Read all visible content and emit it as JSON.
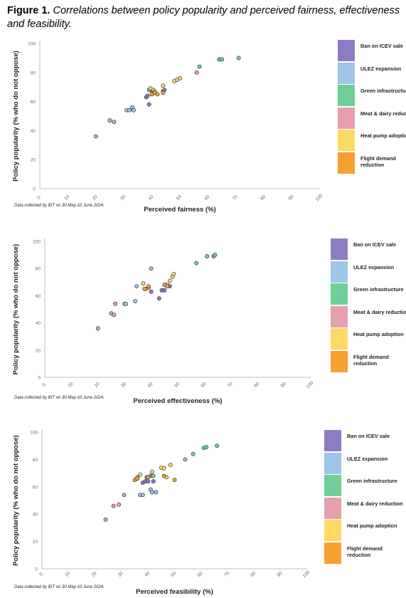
{
  "figure": {
    "label": "Figure 1.",
    "caption": "Correlations between policy popularity and perceived fairness, effectiveness and feasibility."
  },
  "legend": [
    {
      "name": "Ban on ICEV sale",
      "color": "#8e7cc3"
    },
    {
      "name": "ULEZ expansion",
      "color": "#9fc5e8"
    },
    {
      "name": "Green infrastructure",
      "color": "#6fcf97"
    },
    {
      "name": "Meat & dairy reduction",
      "color": "#e6a0ad"
    },
    {
      "name": "Heat pump adoption",
      "color": "#ffd966"
    },
    {
      "name": "Flight demand reduction",
      "color": "#f6a030"
    }
  ],
  "note": "Data collected by BIT on 30 May-10 June 2024.",
  "chart_data": [
    {
      "type": "scatter",
      "xlabel": "Perceived fairness (%)",
      "ylabel": "Policy popularity (% who do not oppose)",
      "xlim": [
        0,
        100
      ],
      "ylim": [
        0,
        100
      ],
      "xticks": [
        0,
        10,
        20,
        30,
        40,
        50,
        60,
        70,
        80,
        90,
        100
      ],
      "yticks": [
        0,
        20,
        40,
        60,
        80,
        100
      ],
      "grid": false,
      "legend_position": "right",
      "series": [
        {
          "name": "Ban on ICEV sale",
          "points": [
            [
              38,
              63
            ],
            [
              38.5,
              64
            ],
            [
              39,
              58
            ],
            [
              40,
              67
            ],
            [
              44,
              67
            ],
            [
              44.5,
              68
            ]
          ]
        },
        {
          "name": "ULEZ expansion",
          "points": [
            [
              31,
              54
            ],
            [
              32,
              54
            ],
            [
              33,
              56
            ],
            [
              33.5,
              54
            ]
          ]
        },
        {
          "name": "Green infrastructure",
          "points": [
            [
              39,
              68
            ],
            [
              57,
              84
            ],
            [
              64,
              89
            ],
            [
              65,
              89
            ],
            [
              71,
              90
            ]
          ]
        },
        {
          "name": "Meat & dairy reduction",
          "points": [
            [
              20,
              36
            ],
            [
              25,
              47
            ],
            [
              26.5,
              46
            ],
            [
              41,
              66
            ],
            [
              56,
              80
            ]
          ]
        },
        {
          "name": "Heat pump adoption",
          "points": [
            [
              39.5,
              69
            ],
            [
              40.5,
              68
            ],
            [
              41,
              67
            ],
            [
              44,
              71
            ],
            [
              48,
              74
            ],
            [
              49,
              75
            ],
            [
              50,
              76
            ]
          ]
        },
        {
          "name": "Flight demand reduction",
          "points": [
            [
              40,
              65
            ],
            [
              41,
              66
            ],
            [
              42,
              65
            ],
            [
              44,
              66
            ]
          ]
        }
      ]
    },
    {
      "type": "scatter",
      "xlabel": "Perceived effectiveness (%)",
      "ylabel": "Policy popularity (% who do not oppose)",
      "xlim": [
        0,
        100
      ],
      "ylim": [
        0,
        100
      ],
      "xticks": [
        0,
        10,
        20,
        30,
        40,
        50,
        60,
        70,
        80,
        90,
        100
      ],
      "yticks": [
        0,
        20,
        40,
        60,
        80,
        100
      ],
      "grid": false,
      "legend_position": "right",
      "series": [
        {
          "name": "Ban on ICEV sale",
          "points": [
            [
              39,
              66
            ],
            [
              40,
              63
            ],
            [
              43,
              58
            ],
            [
              44,
              64
            ],
            [
              45,
              64
            ],
            [
              47,
              67
            ]
          ]
        },
        {
          "name": "ULEZ expansion",
          "points": [
            [
              30,
              54
            ],
            [
              30.5,
              54
            ],
            [
              34,
              56
            ],
            [
              34.5,
              67
            ],
            [
              46,
              68
            ]
          ]
        },
        {
          "name": "Green infrastructure",
          "points": [
            [
              57,
              84
            ],
            [
              61,
              89
            ],
            [
              63.5,
              89
            ],
            [
              64,
              90
            ]
          ]
        },
        {
          "name": "Meat & dairy reduction",
          "points": [
            [
              20,
              36
            ],
            [
              25,
              47
            ],
            [
              26,
              46
            ],
            [
              26.5,
              54
            ],
            [
              40,
              80
            ]
          ]
        },
        {
          "name": "Heat pump adoption",
          "points": [
            [
              37,
              69
            ],
            [
              38,
              65
            ],
            [
              39,
              66
            ],
            [
              47,
              71
            ],
            [
              48,
              74
            ],
            [
              48.5,
              76
            ]
          ]
        },
        {
          "name": "Flight demand reduction",
          "points": [
            [
              37.5,
              65
            ],
            [
              39,
              67
            ],
            [
              45,
              68
            ],
            [
              46,
              67
            ]
          ]
        }
      ]
    },
    {
      "type": "scatter",
      "xlabel": "Perceived feasibility (%)",
      "ylabel": "Policy popularity (% who do not oppose)",
      "xlim": [
        0,
        100
      ],
      "ylim": [
        0,
        100
      ],
      "xticks": [
        0,
        10,
        20,
        30,
        40,
        50,
        60,
        70,
        80,
        90,
        100
      ],
      "yticks": [
        0,
        20,
        40,
        60,
        80,
        100
      ],
      "grid": false,
      "legend_position": "right",
      "series": [
        {
          "name": "Ban on ICEV sale",
          "points": [
            [
              38,
              63
            ],
            [
              39,
              64
            ],
            [
              39.5,
              67
            ],
            [
              40,
              64
            ],
            [
              41,
              68
            ],
            [
              42,
              64
            ]
          ]
        },
        {
          "name": "ULEZ expansion",
          "points": [
            [
              36,
              67
            ],
            [
              37,
              54
            ],
            [
              38,
              54
            ],
            [
              41,
              58
            ],
            [
              41.5,
              56
            ],
            [
              43,
              56
            ]
          ]
        },
        {
          "name": "Green infrastructure",
          "points": [
            [
              42,
              68
            ],
            [
              57,
              84
            ],
            [
              61,
              88.5
            ],
            [
              62,
              89
            ],
            [
              66,
              90
            ]
          ]
        },
        {
          "name": "Meat & dairy reduction",
          "points": [
            [
              24,
              36
            ],
            [
              27,
              46
            ],
            [
              29,
              47
            ],
            [
              31,
              54
            ],
            [
              54,
              80
            ]
          ]
        },
        {
          "name": "Heat pump adoption",
          "points": [
            [
              37,
              69
            ],
            [
              41.5,
              71
            ],
            [
              45,
              74
            ],
            [
              46,
              73.5
            ],
            [
              47,
              67
            ],
            [
              48.5,
              76
            ]
          ]
        },
        {
          "name": "Flight demand reduction",
          "points": [
            [
              35,
              65
            ],
            [
              36,
              66
            ],
            [
              40,
              67
            ],
            [
              46,
              68
            ],
            [
              50,
              65
            ]
          ]
        }
      ]
    }
  ]
}
